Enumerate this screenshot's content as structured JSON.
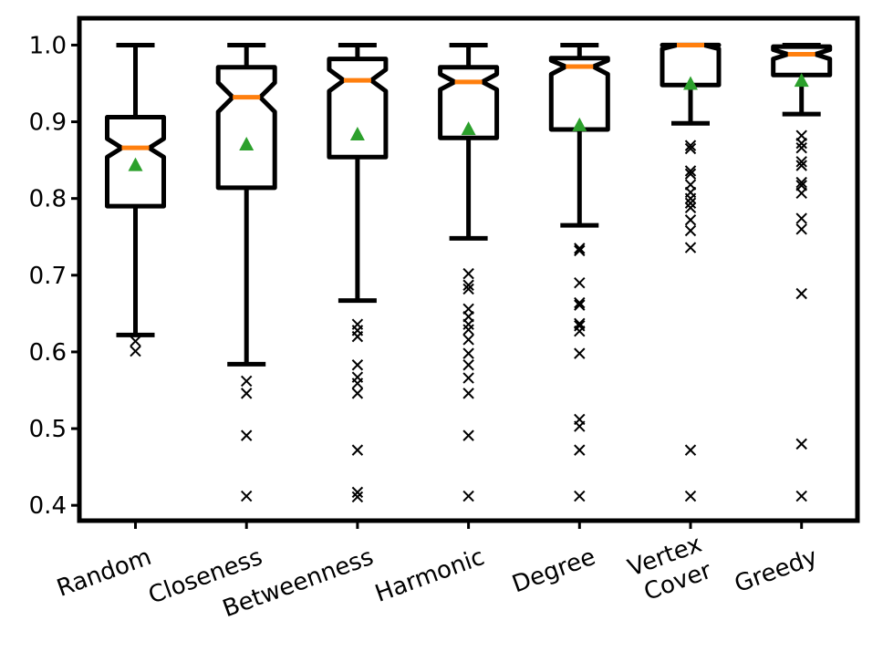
{
  "chart_data": {
    "type": "boxplot",
    "title": "",
    "xlabel": "",
    "ylabel": "",
    "ylim": [
      0.38,
      1.035
    ],
    "yticks": [
      0.4,
      0.5,
      0.6,
      0.7,
      0.8,
      0.9,
      1.0
    ],
    "ytick_labels": [
      "0.4",
      "0.5",
      "0.6",
      "0.7",
      "0.8",
      "0.9",
      "1.0"
    ],
    "grid": false,
    "colors": {
      "box": "#000000",
      "median": "#ff7f0e",
      "mean": "#2ca02c",
      "outlier": "#000000"
    },
    "categories": [
      {
        "label": [
          "Random"
        ],
        "whisker_low": 0.622,
        "q1": 0.79,
        "median": 0.866,
        "q3": 0.906,
        "whisker_high": 1.0,
        "notch_low": 0.854,
        "notch_high": 0.878,
        "mean": 0.844,
        "outliers": [
          0.614,
          0.601
        ]
      },
      {
        "label": [
          "Closeness"
        ],
        "whisker_low": 0.584,
        "q1": 0.814,
        "median": 0.932,
        "q3": 0.971,
        "whisker_high": 1.0,
        "notch_low": 0.913,
        "notch_high": 0.951,
        "mean": 0.871,
        "outliers": [
          0.562,
          0.546,
          0.491,
          0.412
        ]
      },
      {
        "label": [
          "Betweenness"
        ],
        "whisker_low": 0.667,
        "q1": 0.854,
        "median": 0.954,
        "q3": 0.982,
        "whisker_high": 1.0,
        "notch_low": 0.94,
        "notch_high": 0.968,
        "mean": 0.884,
        "outliers": [
          0.636,
          0.628,
          0.62,
          0.583,
          0.567,
          0.559,
          0.546,
          0.472,
          0.417,
          0.411
        ]
      },
      {
        "label": [
          "Harmonic"
        ],
        "whisker_low": 0.748,
        "q1": 0.879,
        "median": 0.952,
        "q3": 0.971,
        "whisker_high": 1.0,
        "notch_low": 0.942,
        "notch_high": 0.962,
        "mean": 0.891,
        "outliers": [
          0.702,
          0.687,
          0.682,
          0.656,
          0.646,
          0.636,
          0.629,
          0.616,
          0.598,
          0.583,
          0.566,
          0.546,
          0.491,
          0.412
        ]
      },
      {
        "label": [
          "Degree"
        ],
        "whisker_low": 0.765,
        "q1": 0.89,
        "median": 0.972,
        "q3": 0.983,
        "whisker_high": 1.0,
        "notch_low": 0.962,
        "notch_high": 0.98,
        "mean": 0.896,
        "outliers": [
          0.735,
          0.732,
          0.69,
          0.664,
          0.661,
          0.637,
          0.634,
          0.627,
          0.598,
          0.512,
          0.503,
          0.472,
          0.412
        ]
      },
      {
        "label": [
          "Vertex",
          "Cover"
        ],
        "whisker_low": 0.898,
        "q1": 0.948,
        "median": 1.0,
        "q3": 1.0,
        "whisker_high": 1.0,
        "notch_low": 0.995,
        "notch_high": 1.0,
        "mean": 0.95,
        "outliers": [
          0.869,
          0.865,
          0.836,
          0.832,
          0.818,
          0.808,
          0.8,
          0.794,
          0.788,
          0.772,
          0.758,
          0.736,
          0.472,
          0.412
        ]
      },
      {
        "label": [
          "Greedy"
        ],
        "whisker_low": 0.91,
        "q1": 0.961,
        "median": 0.988,
        "q3": 0.998,
        "whisker_high": 1.0,
        "notch_low": 0.982,
        "notch_high": 0.994,
        "mean": 0.954,
        "outliers": [
          0.882,
          0.872,
          0.866,
          0.848,
          0.843,
          0.821,
          0.817,
          0.807,
          0.774,
          0.76,
          0.676,
          0.48,
          0.412
        ]
      }
    ]
  }
}
